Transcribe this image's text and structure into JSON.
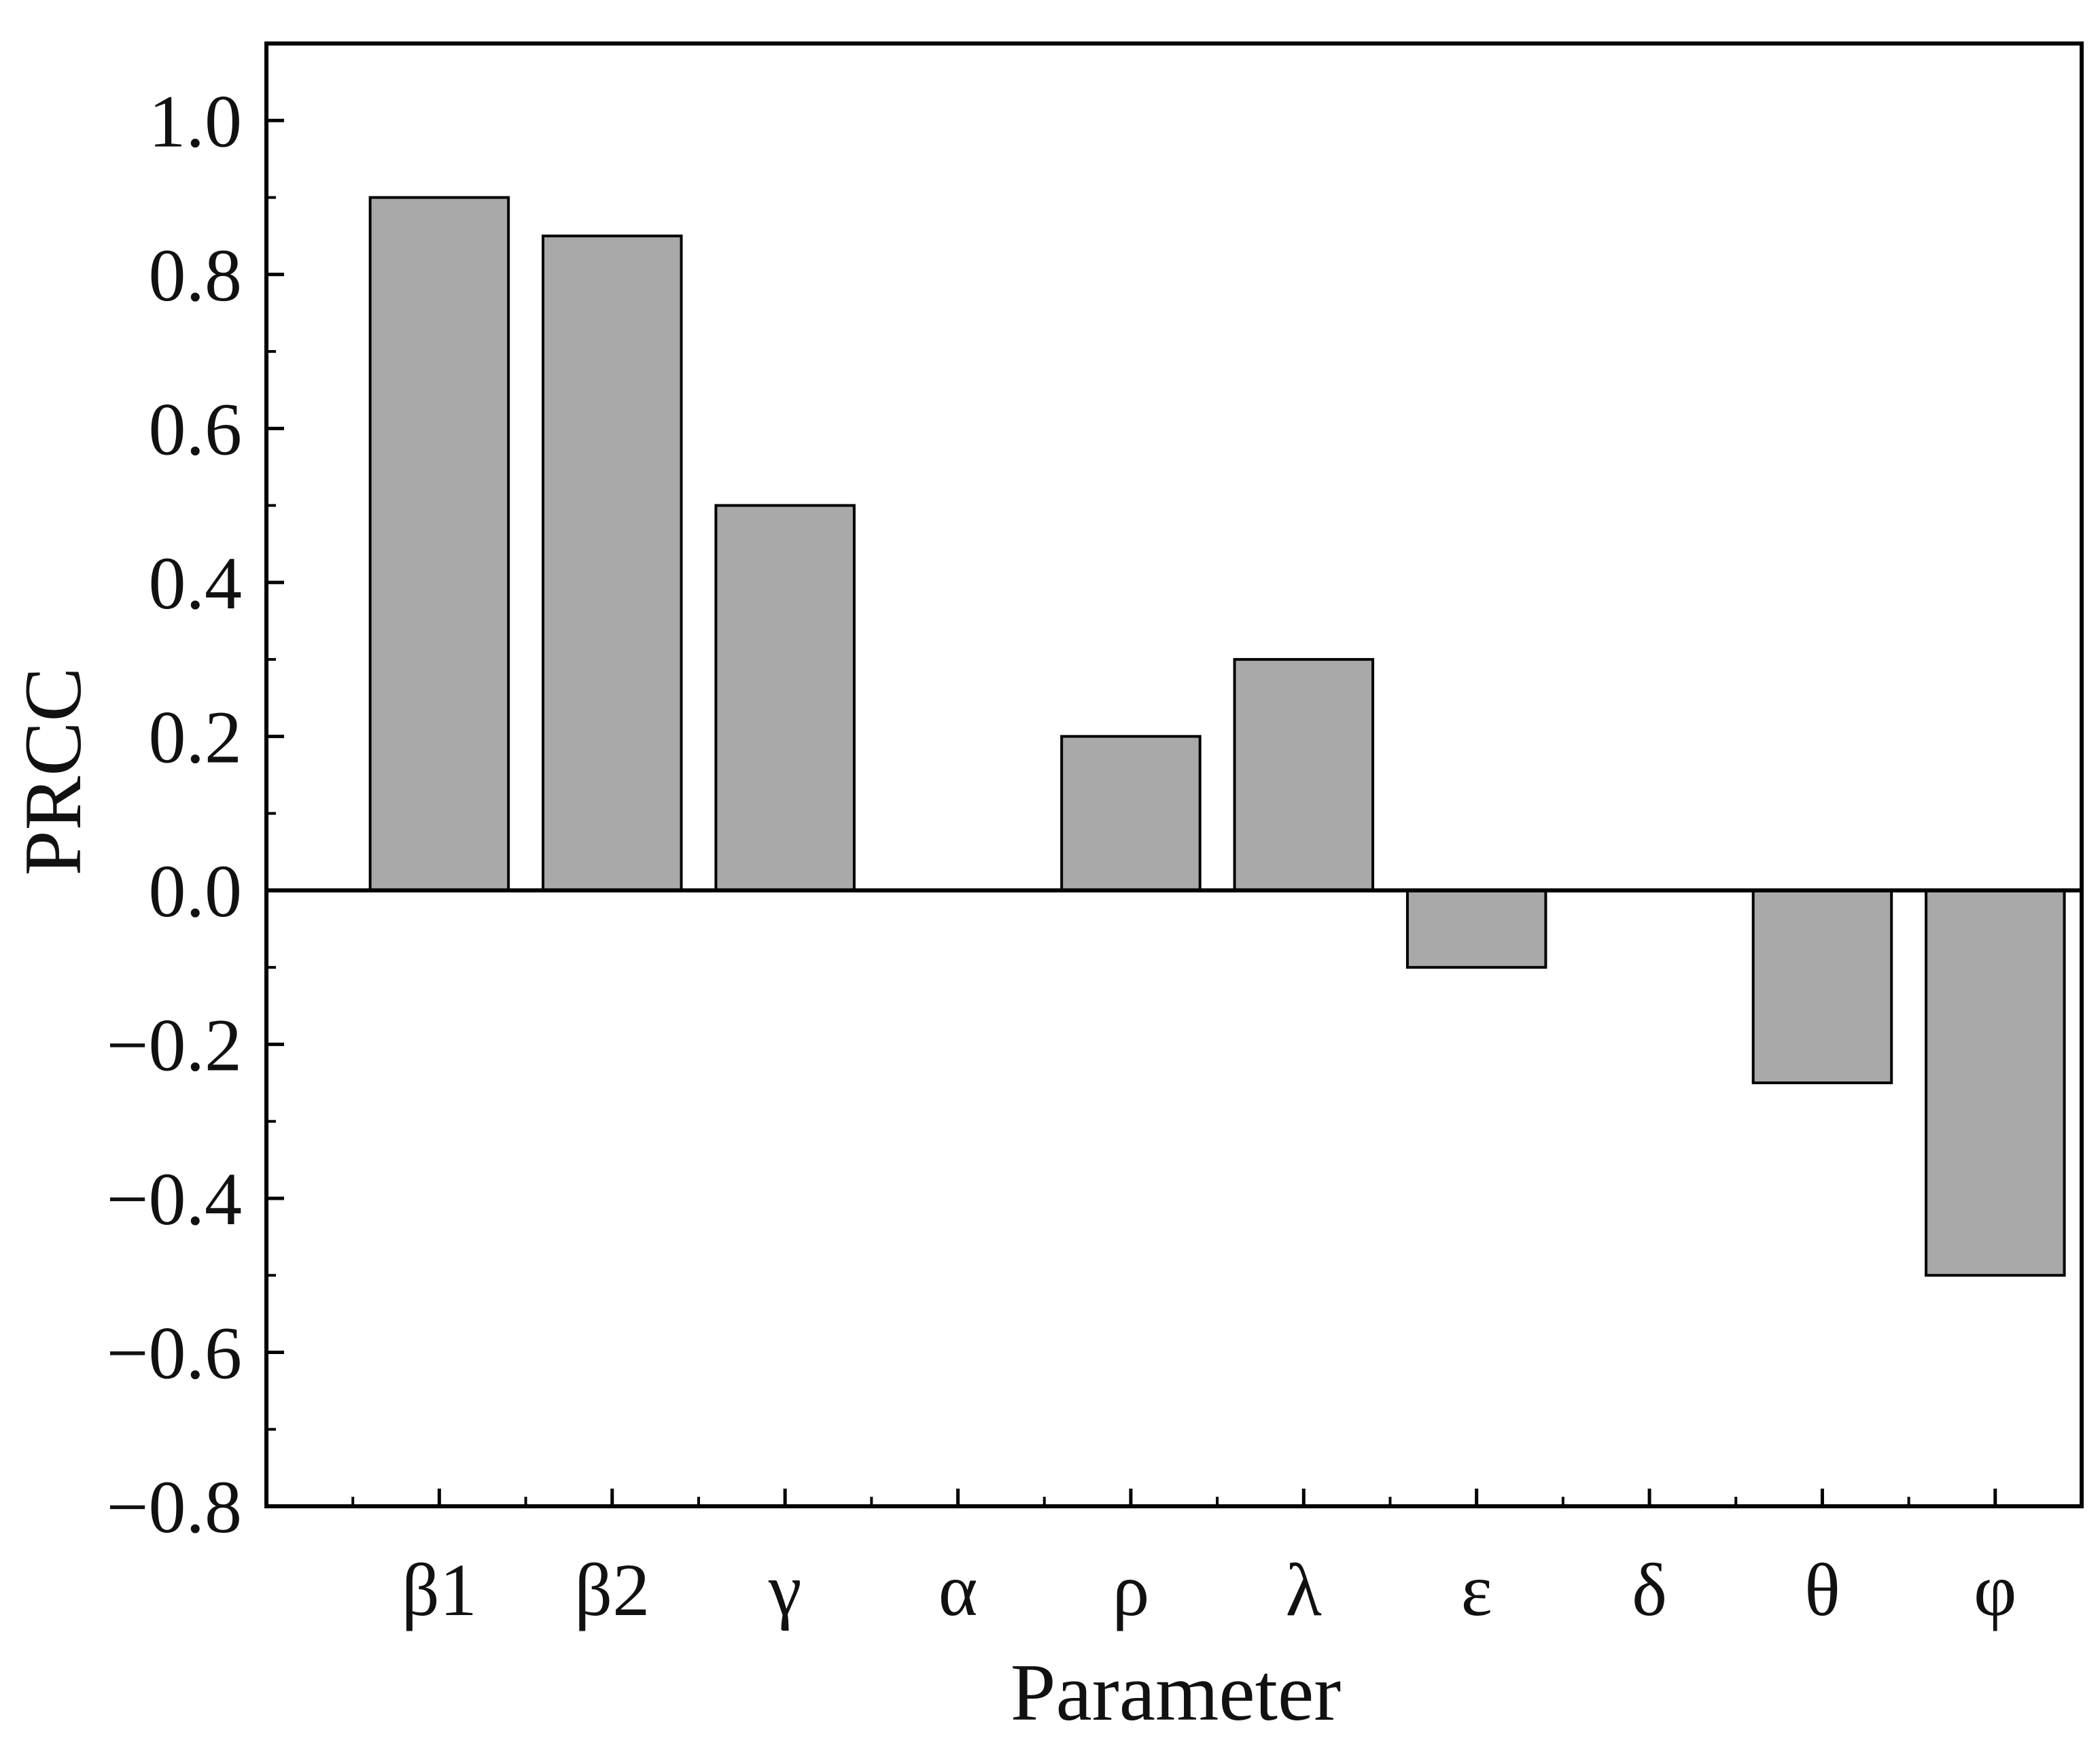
{
  "chart_data": {
    "type": "bar",
    "title": "",
    "xlabel": "Parameter",
    "ylabel": "PRCC",
    "categories": [
      "β1",
      "β2",
      "γ",
      "α",
      "ρ",
      "λ",
      "ε",
      "δ",
      "θ",
      "φ"
    ],
    "values": [
      0.9,
      0.85,
      0.5,
      0.0,
      0.2,
      0.3,
      -0.1,
      0.0,
      -0.25,
      -0.5
    ],
    "ylim": [
      -0.8,
      1.1
    ],
    "yticks": [
      -0.8,
      -0.6,
      -0.4,
      -0.2,
      0.0,
      0.2,
      0.4,
      0.6,
      0.8,
      1.0
    ],
    "ytick_labels": [
      "−0.8",
      "−0.6",
      "−0.4",
      "−0.2",
      "0.0",
      "0.2",
      "0.4",
      "0.6",
      "0.8",
      "1.0"
    ],
    "grid": false,
    "legend": "none",
    "colors": {
      "bar_fill": "#a9a9a9",
      "bar_stroke": "#000000",
      "axis": "#000000"
    }
  }
}
